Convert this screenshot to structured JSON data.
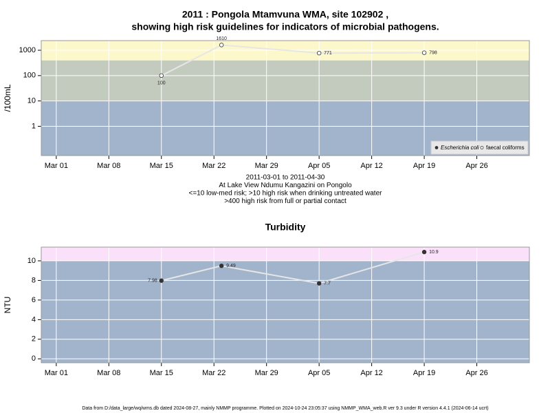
{
  "chart_data": [
    {
      "type": "line",
      "title": [
        "2011 : Pongola Mtamvuna WMA, site 102902 ,",
        "showing high risk guidelines for indicators of microbial pathogens."
      ],
      "y_label": "/100mL",
      "notes": [
        "2011-03-01 to 2011-04-30",
        "At Lake View Ndumu Kangazini on Pongolo",
        "<=10 low-med risk; >10 high risk when drinking untreated water",
        ">400 high risk from full or partial contact"
      ],
      "x": [
        "2011-03-15",
        "2011-03-23",
        "2011-04-05",
        "2011-04-19"
      ],
      "xlim": [
        "2011-02-27",
        "2011-05-03"
      ],
      "xticks": [
        {
          "value": "2011-03-01",
          "label": "Mar 01"
        },
        {
          "value": "2011-03-08",
          "label": "Mar 08"
        },
        {
          "value": "2011-03-15",
          "label": "Mar 15"
        },
        {
          "value": "2011-03-22",
          "label": "Mar 22"
        },
        {
          "value": "2011-03-29",
          "label": "Mar 29"
        },
        {
          "value": "2011-04-05",
          "label": "Apr 05"
        },
        {
          "value": "2011-04-12",
          "label": "Apr 12"
        },
        {
          "value": "2011-04-19",
          "label": "Apr 19"
        },
        {
          "value": "2011-04-26",
          "label": "Apr 26"
        }
      ],
      "ylim": [
        0.07,
        2400
      ],
      "yticks": [
        1,
        10,
        100,
        1000
      ],
      "log_scale": true,
      "grid": true,
      "thresholds": [
        10,
        400
      ],
      "band_colors": [
        "#a2b4cc",
        "#c3cbbf",
        "#fdf7cc"
      ],
      "line_color": "#e6e6e6",
      "legend": "bottom-right",
      "series": [
        {
          "name": "Escherichia coli",
          "color": "#333333",
          "values": [
            null,
            null,
            null,
            null
          ]
        },
        {
          "name": "faecal coliforms",
          "color": "#ffffff",
          "values": [
            100,
            1610,
            771,
            798
          ]
        }
      ]
    },
    {
      "type": "line",
      "title": "Turbidity",
      "y_label": "NTU",
      "x": [
        "2011-03-15",
        "2011-03-23",
        "2011-04-05",
        "2011-04-19"
      ],
      "xlim": [
        "2011-02-27",
        "2011-05-03"
      ],
      "xticks": [
        {
          "value": "2011-03-01",
          "label": "Mar 01"
        },
        {
          "value": "2011-03-08",
          "label": "Mar 08"
        },
        {
          "value": "2011-03-15",
          "label": "Mar 15"
        },
        {
          "value": "2011-03-22",
          "label": "Mar 22"
        },
        {
          "value": "2011-03-29",
          "label": "Mar 29"
        },
        {
          "value": "2011-04-05",
          "label": "Apr 05"
        },
        {
          "value": "2011-04-12",
          "label": "Apr 12"
        },
        {
          "value": "2011-04-19",
          "label": "Apr 19"
        },
        {
          "value": "2011-04-26",
          "label": "Apr 26"
        }
      ],
      "ylim": [
        -0.4,
        11.4
      ],
      "yticks": [
        0,
        2,
        4,
        6,
        8,
        10
      ],
      "grid": true,
      "thresholds": [
        10
      ],
      "band_colors": [
        "#a2b4cc",
        "#fbe0fa"
      ],
      "line_color": "#e6e6e6",
      "color": "#333333",
      "values": [
        7.98,
        9.49,
        7.7,
        10.9
      ]
    }
  ],
  "footer": "Data from D:/data_large/wq/wms.db dated 2024-08-27, mainly NMMP programme. Plotted on 2024-10-24 23:05:37 using NMMP_WMA_web.R ver 9.3 under R version 4.4.1 (2024-06-14 ucrt)"
}
